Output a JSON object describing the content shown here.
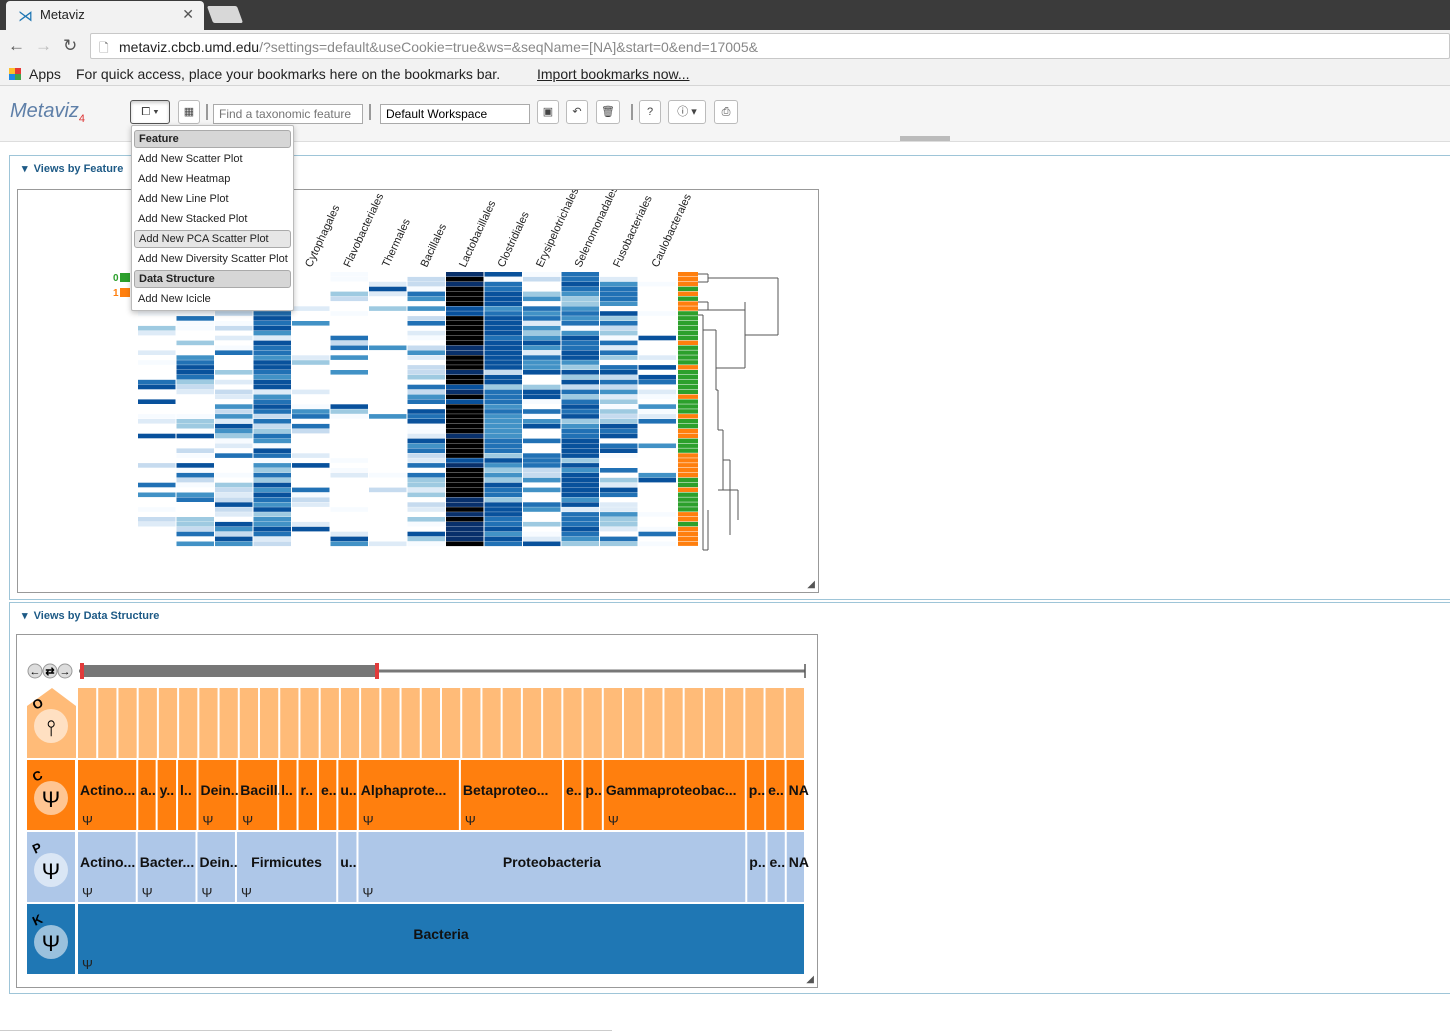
{
  "browser": {
    "tab_title": "Metaviz",
    "url_host": "metaviz.cbcb.umd.edu",
    "url_path": "/?settings=default&useCookie=true&ws=&seqName=[NA]&start=0&end=17005&",
    "apps_label": "Apps",
    "bookmarks_message": "For quick access, place your bookmarks here on the bookmarks bar.",
    "bookmarks_link": "Import bookmarks now..."
  },
  "toolbar": {
    "logo_text": "Metaviz",
    "logo_version": "4",
    "search_placeholder": "Find a taxonomic feature",
    "workspace_value": "Default Workspace",
    "help_label": "?"
  },
  "menu": {
    "sections": [
      {
        "header": "Feature",
        "items": [
          "Add New Scatter Plot",
          "Add New Heatmap",
          "Add New Line Plot",
          "Add New Stacked Plot",
          "Add New PCA Scatter Plot",
          "Add New Diversity Scatter Plot"
        ]
      },
      {
        "header": "Data Structure",
        "items": [
          "Add New Icicle"
        ]
      }
    ],
    "selected_item": "Add New PCA Scatter Plot"
  },
  "panels": {
    "feature_title": "Views by Feature",
    "structure_title": "Views by Data Structure"
  },
  "colors": {
    "accent": "#1d5a86",
    "group0": "#2ca02c",
    "group1": "#ff7f0e",
    "order_row": "#ffbb78",
    "class_row": "#ff7f0e",
    "phylum_row": "#aec7e8",
    "kingdom_row": "#1f77b4"
  },
  "heatmap": {
    "column_labels": [
      "ales",
      "Cytophagales",
      "Flavobacteriales",
      "Thermales",
      "Bacillales",
      "Lactobacillales",
      "Clostridiales",
      "Erysipelotrichales",
      "Selenomonadales",
      "Fusobacteriales",
      "Caulobacterales"
    ],
    "legend": [
      {
        "label": "0",
        "color": "#2ca02c"
      },
      {
        "label": "1",
        "color": "#ff7f0e"
      }
    ]
  },
  "icicle": {
    "levels": [
      {
        "letter": "O",
        "icon": "order-node-icon"
      },
      {
        "letter": "C",
        "icon": "trident-icon"
      },
      {
        "letter": "P",
        "icon": "trident-icon"
      },
      {
        "letter": "K",
        "icon": "trident-icon"
      }
    ],
    "class_labels": [
      "Actino...",
      "a..",
      "y..",
      "l..",
      "Dein...",
      "Bacill...",
      "l..",
      "r..",
      "e..",
      "u..",
      "Alphaprote...",
      "Betaproteo...",
      "e..",
      "p..",
      "Gammaproteobac...",
      "p..",
      "e..",
      "NA"
    ],
    "phylum_labels": [
      "Actino...",
      "Bacter...",
      "Dein...",
      "Firmicutes",
      "u..",
      "Proteobacteria",
      "p..",
      "e..",
      "NA"
    ],
    "kingdom_label": "Bacteria"
  }
}
